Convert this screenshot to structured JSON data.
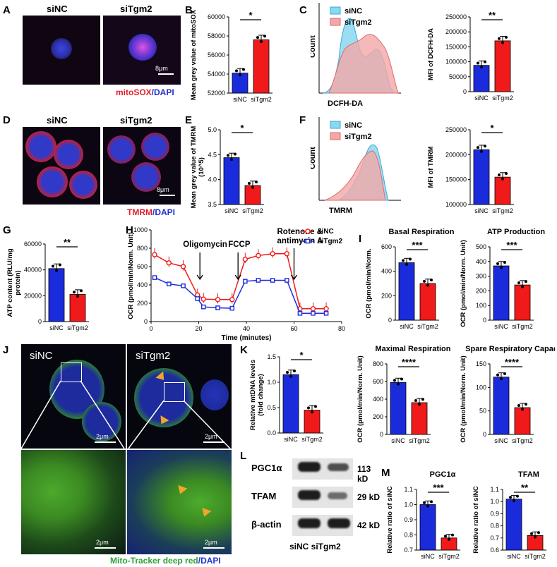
{
  "panels": {
    "A": "A",
    "B": "B",
    "C": "C",
    "D": "D",
    "E": "E",
    "F": "F",
    "G": "G",
    "H": "H",
    "I": "I",
    "J": "J",
    "K": "K",
    "L": "L",
    "M": "M"
  },
  "groups": {
    "nc": "siNC",
    "kd": "siTgm2"
  },
  "colors": {
    "nc": "#1a2bdc",
    "kd": "#f01a1a",
    "nc_fill": "#7ed7f2",
    "kd_fill": "#f3a6a6"
  },
  "panelA": {
    "scale": "8μm",
    "caption_red": "mitoSOX",
    "caption_sep": "/",
    "caption_blue": "DAPI"
  },
  "panelD": {
    "scale": "8μm",
    "caption_red": "TMRM",
    "caption_sep": "/",
    "caption_blue": "DAPI"
  },
  "panelJ": {
    "scale": "2μm",
    "caption_green": "Mito-Tracker deep red",
    "caption_sep": "/",
    "caption_blue": "DAPI"
  },
  "panelL": {
    "bands": [
      {
        "name": "PGC1α",
        "size": "113 kD"
      },
      {
        "name": "TFAM",
        "size": "29 kD"
      },
      {
        "name": "β-actin",
        "size": "42 kD"
      }
    ],
    "lanes": "siNC siTgm2"
  },
  "flow": {
    "C": {
      "xlabel": "DCFH-DA",
      "ylabel": "Count"
    },
    "F": {
      "xlabel": "TMRM",
      "ylabel": "Count"
    }
  },
  "chart_data": [
    {
      "id": "B",
      "type": "bar",
      "categories": [
        "siNC",
        "siTgm2"
      ],
      "values": [
        54100,
        57600
      ],
      "ylabel": "Mean grey value of mitoSOX",
      "ylim": [
        52000,
        60000
      ],
      "yticks": [
        "52000",
        "54000",
        "56000",
        "58000",
        "60000"
      ],
      "sig": "*"
    },
    {
      "id": "C2",
      "type": "bar",
      "categories": [
        "siNC",
        "siTgm2"
      ],
      "values": [
        88000,
        170000
      ],
      "ylabel": "MFI of DCFH-DA",
      "ylim": [
        0,
        250000
      ],
      "yticks": [
        "0",
        "50000",
        "100000",
        "150000",
        "200000",
        "250000"
      ],
      "sig": "**"
    },
    {
      "id": "E",
      "type": "bar",
      "categories": [
        "siNC",
        "siTgm2"
      ],
      "values": [
        4.44,
        3.88
      ],
      "ylabel": "Mean grey value of TMRM (10^5)",
      "ylim": [
        3.5,
        5.0
      ],
      "yticks": [
        "3.5",
        "4.0",
        "4.5",
        "5.0"
      ],
      "sig": "*"
    },
    {
      "id": "F2",
      "type": "bar",
      "categories": [
        "siNC",
        "siTgm2"
      ],
      "values": [
        210000,
        155000
      ],
      "ylabel": "MFI of TMRM",
      "ylim": [
        100000,
        250000
      ],
      "yticks": [
        "100000",
        "150000",
        "200000",
        "250000"
      ],
      "sig": "*"
    },
    {
      "id": "G",
      "type": "bar",
      "categories": [
        "siNC",
        "siTgm2"
      ],
      "values": [
        41000,
        21000
      ],
      "ylabel": "ATP content (RLU/mg protein)",
      "ylim": [
        0,
        60000
      ],
      "yticks": [
        "0",
        "20000",
        "40000",
        "60000"
      ],
      "sig": "**"
    },
    {
      "id": "H",
      "type": "line",
      "title": "",
      "xlabel": "Time (minutes)",
      "ylabel": "OCR (pmol/min/Norm. Unit)",
      "xlim": [
        0,
        80
      ],
      "ylim": [
        0,
        1000
      ],
      "xticks": [
        "0",
        "20",
        "40",
        "60",
        "80"
      ],
      "yticks": [
        "0",
        "200",
        "400",
        "600",
        "800",
        "1000"
      ],
      "annotations": [
        "Oligomycin",
        "FCCP",
        "Rotenone &",
        "antimycin A"
      ],
      "series": [
        {
          "name": "siNC",
          "x": [
            1.5,
            7.5,
            13.5,
            19.5,
            22,
            28,
            34,
            39.5,
            45,
            51,
            57,
            62.5,
            68,
            73.5
          ],
          "y": [
            730,
            640,
            600,
            290,
            245,
            240,
            240,
            680,
            720,
            740,
            740,
            140,
            140,
            140
          ]
        },
        {
          "name": "siTgm2",
          "x": [
            1.5,
            7.5,
            13.5,
            19.5,
            22,
            28,
            34,
            39.5,
            45,
            51,
            57,
            62.5,
            68,
            73.5
          ],
          "y": [
            480,
            410,
            390,
            250,
            160,
            150,
            145,
            440,
            450,
            450,
            450,
            90,
            90,
            90
          ]
        }
      ]
    },
    {
      "id": "I1",
      "type": "bar",
      "title": "Basal Respiration",
      "categories": [
        "siNC",
        "siTgm2"
      ],
      "values": [
        470,
        300
      ],
      "ylabel": "OCR (pmol/min/Norm.",
      "ylim": [
        0,
        600
      ],
      "yticks": [
        "0",
        "200",
        "400",
        "600"
      ],
      "sig": "***"
    },
    {
      "id": "I2",
      "type": "bar",
      "title": "ATP Production",
      "categories": [
        "siNC",
        "siTgm2"
      ],
      "values": [
        370,
        240
      ],
      "ylabel": "OCR (pmol/min/Norm. Unit)",
      "ylim": [
        0,
        500
      ],
      "yticks": [
        "0",
        "100",
        "200",
        "300",
        "400",
        "500"
      ],
      "sig": "***"
    },
    {
      "id": "K",
      "type": "bar",
      "categories": [
        "siNC",
        "siTgm2"
      ],
      "values": [
        1.15,
        0.45
      ],
      "ylabel": "Relative mtDNA levels (fold change)",
      "ylim": [
        0,
        1.5
      ],
      "yticks": [
        "0.0",
        "0.5",
        "1.0",
        "1.5"
      ],
      "sig": "*"
    },
    {
      "id": "I3",
      "type": "bar",
      "title": "Maximal Respiration",
      "categories": [
        "siNC",
        "siTgm2"
      ],
      "values": [
        590,
        360
      ],
      "ylabel": "OCR (pmol/min/Norm. Unit)",
      "ylim": [
        0,
        800
      ],
      "yticks": [
        "0",
        "200",
        "400",
        "600",
        "800"
      ],
      "sig": "****"
    },
    {
      "id": "I4",
      "type": "bar",
      "title": "Spare Respiratory Capacity",
      "categories": [
        "siNC",
        "siTgm2"
      ],
      "values": [
        122,
        57
      ],
      "ylabel": "OCR (pmol/min/Norm. Unit)",
      "ylim": [
        0,
        150
      ],
      "yticks": [
        "0",
        "50",
        "100",
        "150"
      ],
      "sig": "****"
    },
    {
      "id": "M1",
      "type": "bar",
      "title": "PGC1α",
      "categories": [
        "siNC",
        "siTgm2"
      ],
      "values": [
        1.0,
        0.78
      ],
      "ylabel": "Relative ratio of siNC",
      "ylim": [
        0.7,
        1.1
      ],
      "yticks": [
        "0.7",
        "0.8",
        "0.9",
        "1.0",
        "1.1"
      ],
      "sig": "***"
    },
    {
      "id": "M2",
      "type": "bar",
      "title": "TFAM",
      "categories": [
        "siNC",
        "siTgm2"
      ],
      "values": [
        1.02,
        0.72
      ],
      "ylabel": "Relative ratio of siNC",
      "ylim": [
        0.6,
        1.1
      ],
      "yticks": [
        "0.6",
        "0.7",
        "0.8",
        "0.9",
        "1.0",
        "1.1"
      ],
      "sig": "**"
    }
  ]
}
